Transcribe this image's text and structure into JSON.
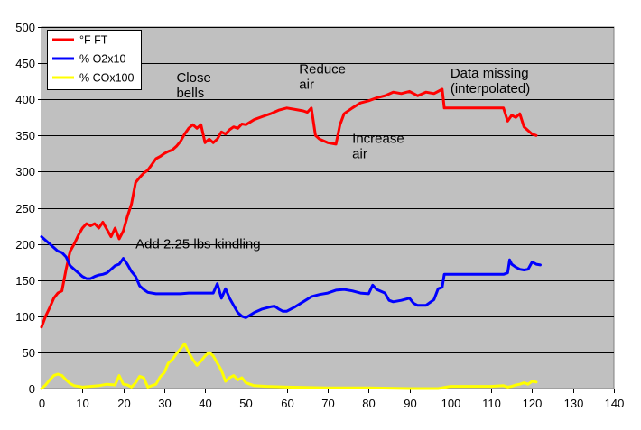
{
  "chart_data": {
    "type": "line",
    "title": "",
    "xlabel": "",
    "ylabel": "",
    "xlim": [
      0,
      140
    ],
    "ylim": [
      0,
      500
    ],
    "x_ticks": [
      0,
      10,
      20,
      30,
      40,
      50,
      60,
      70,
      80,
      90,
      100,
      110,
      120,
      130,
      140
    ],
    "y_ticks": [
      0,
      50,
      100,
      150,
      200,
      250,
      300,
      350,
      400,
      450,
      500
    ],
    "grid": "horizontal",
    "background": "#c0c0c0",
    "legend_position": "top-left",
    "series": [
      {
        "name": "°F FT",
        "color": "#ff0000",
        "points": [
          [
            0,
            85
          ],
          [
            1,
            100
          ],
          [
            2,
            112
          ],
          [
            3,
            125
          ],
          [
            4,
            132
          ],
          [
            5,
            135
          ],
          [
            6,
            165
          ],
          [
            7,
            190
          ],
          [
            8,
            200
          ],
          [
            9,
            212
          ],
          [
            10,
            222
          ],
          [
            11,
            228
          ],
          [
            12,
            225
          ],
          [
            13,
            228
          ],
          [
            14,
            222
          ],
          [
            15,
            230
          ],
          [
            16,
            220
          ],
          [
            17,
            210
          ],
          [
            18,
            222
          ],
          [
            19,
            207
          ],
          [
            20,
            218
          ],
          [
            21,
            238
          ],
          [
            22,
            255
          ],
          [
            23,
            285
          ],
          [
            24,
            292
          ],
          [
            25,
            298
          ],
          [
            26,
            302
          ],
          [
            27,
            310
          ],
          [
            28,
            318
          ],
          [
            29,
            321
          ],
          [
            30,
            325
          ],
          [
            31,
            328
          ],
          [
            32,
            330
          ],
          [
            33,
            335
          ],
          [
            34,
            342
          ],
          [
            35,
            352
          ],
          [
            36,
            360
          ],
          [
            37,
            365
          ],
          [
            38,
            360
          ],
          [
            39,
            365
          ],
          [
            40,
            340
          ],
          [
            41,
            345
          ],
          [
            42,
            340
          ],
          [
            43,
            345
          ],
          [
            44,
            355
          ],
          [
            45,
            352
          ],
          [
            46,
            358
          ],
          [
            47,
            362
          ],
          [
            48,
            360
          ],
          [
            49,
            366
          ],
          [
            50,
            365
          ],
          [
            52,
            372
          ],
          [
            54,
            376
          ],
          [
            56,
            380
          ],
          [
            58,
            385
          ],
          [
            60,
            388
          ],
          [
            62,
            386
          ],
          [
            64,
            384
          ],
          [
            65,
            382
          ],
          [
            66,
            388
          ],
          [
            67,
            350
          ],
          [
            68,
            345
          ],
          [
            70,
            340
          ],
          [
            72,
            338
          ],
          [
            73,
            365
          ],
          [
            74,
            380
          ],
          [
            76,
            388
          ],
          [
            78,
            395
          ],
          [
            80,
            398
          ],
          [
            82,
            402
          ],
          [
            84,
            405
          ],
          [
            86,
            410
          ],
          [
            88,
            408
          ],
          [
            90,
            411
          ],
          [
            92,
            405
          ],
          [
            94,
            410
          ],
          [
            96,
            408
          ],
          [
            98,
            414
          ],
          [
            98.5,
            388
          ],
          [
            113,
            388
          ],
          [
            114,
            370
          ],
          [
            115,
            378
          ],
          [
            116,
            375
          ],
          [
            117,
            380
          ],
          [
            118,
            362
          ],
          [
            120,
            352
          ],
          [
            121,
            350
          ]
        ]
      },
      {
        "name": "% O2x10",
        "color": "#0000ff",
        "points": [
          [
            0,
            210
          ],
          [
            1,
            205
          ],
          [
            2,
            200
          ],
          [
            3,
            195
          ],
          [
            4,
            190
          ],
          [
            5,
            188
          ],
          [
            6,
            182
          ],
          [
            7,
            170
          ],
          [
            8,
            165
          ],
          [
            9,
            160
          ],
          [
            10,
            155
          ],
          [
            11,
            152
          ],
          [
            12,
            152
          ],
          [
            13,
            155
          ],
          [
            14,
            157
          ],
          [
            15,
            158
          ],
          [
            16,
            160
          ],
          [
            17,
            165
          ],
          [
            18,
            170
          ],
          [
            19,
            172
          ],
          [
            20,
            180
          ],
          [
            21,
            172
          ],
          [
            22,
            162
          ],
          [
            23,
            155
          ],
          [
            24,
            142
          ],
          [
            25,
            137
          ],
          [
            26,
            133
          ],
          [
            28,
            131
          ],
          [
            30,
            131
          ],
          [
            32,
            131
          ],
          [
            34,
            131
          ],
          [
            36,
            132
          ],
          [
            38,
            132
          ],
          [
            40,
            132
          ],
          [
            42,
            132
          ],
          [
            43,
            145
          ],
          [
            44,
            125
          ],
          [
            45,
            138
          ],
          [
            46,
            125
          ],
          [
            47,
            115
          ],
          [
            48,
            105
          ],
          [
            49,
            100
          ],
          [
            50,
            98
          ],
          [
            52,
            105
          ],
          [
            54,
            110
          ],
          [
            56,
            113
          ],
          [
            57,
            114
          ],
          [
            58,
            110
          ],
          [
            59,
            107
          ],
          [
            60,
            107
          ],
          [
            62,
            113
          ],
          [
            64,
            120
          ],
          [
            66,
            127
          ],
          [
            68,
            130
          ],
          [
            70,
            132
          ],
          [
            72,
            136
          ],
          [
            74,
            137
          ],
          [
            76,
            135
          ],
          [
            78,
            132
          ],
          [
            80,
            131
          ],
          [
            81,
            143
          ],
          [
            82,
            137
          ],
          [
            84,
            132
          ],
          [
            85,
            122
          ],
          [
            86,
            120
          ],
          [
            88,
            122
          ],
          [
            90,
            125
          ],
          [
            91,
            118
          ],
          [
            92,
            115
          ],
          [
            94,
            115
          ],
          [
            96,
            123
          ],
          [
            97,
            138
          ],
          [
            98,
            140
          ],
          [
            98.5,
            158
          ],
          [
            100,
            158
          ],
          [
            105,
            158
          ],
          [
            110,
            158
          ],
          [
            113,
            158
          ],
          [
            114,
            160
          ],
          [
            114.5,
            178
          ],
          [
            115,
            172
          ],
          [
            116,
            168
          ],
          [
            117,
            165
          ],
          [
            118,
            164
          ],
          [
            119,
            165
          ],
          [
            120,
            175
          ],
          [
            121,
            172
          ],
          [
            122,
            171
          ]
        ]
      },
      {
        "name": "% COx100",
        "color": "#ffff00",
        "points": [
          [
            0,
            0
          ],
          [
            1,
            5
          ],
          [
            2,
            12
          ],
          [
            3,
            18
          ],
          [
            4,
            20
          ],
          [
            5,
            18
          ],
          [
            6,
            12
          ],
          [
            7,
            7
          ],
          [
            8,
            4
          ],
          [
            10,
            2
          ],
          [
            12,
            3
          ],
          [
            14,
            4
          ],
          [
            16,
            6
          ],
          [
            18,
            5
          ],
          [
            19,
            18
          ],
          [
            20,
            6
          ],
          [
            21,
            5
          ],
          [
            22,
            2
          ],
          [
            23,
            8
          ],
          [
            24,
            17
          ],
          [
            25,
            15
          ],
          [
            26,
            2
          ],
          [
            28,
            6
          ],
          [
            29,
            16
          ],
          [
            30,
            22
          ],
          [
            31,
            35
          ],
          [
            32,
            40
          ],
          [
            33,
            48
          ],
          [
            34,
            55
          ],
          [
            35,
            62
          ],
          [
            36,
            50
          ],
          [
            37,
            40
          ],
          [
            38,
            32
          ],
          [
            39,
            38
          ],
          [
            40,
            45
          ],
          [
            41,
            50
          ],
          [
            42,
            45
          ],
          [
            43,
            35
          ],
          [
            44,
            25
          ],
          [
            45,
            10
          ],
          [
            46,
            15
          ],
          [
            47,
            18
          ],
          [
            48,
            12
          ],
          [
            49,
            15
          ],
          [
            50,
            8
          ],
          [
            52,
            4
          ],
          [
            55,
            3
          ],
          [
            60,
            2
          ],
          [
            70,
            1
          ],
          [
            80,
            1
          ],
          [
            90,
            0
          ],
          [
            97,
            0
          ],
          [
            100,
            3
          ],
          [
            105,
            3
          ],
          [
            110,
            3
          ],
          [
            113,
            4
          ],
          [
            114,
            2
          ],
          [
            115,
            3
          ],
          [
            116,
            5
          ],
          [
            117,
            6
          ],
          [
            118,
            8
          ],
          [
            119,
            6
          ],
          [
            120,
            10
          ],
          [
            121,
            9
          ]
        ]
      }
    ],
    "annotations": [
      {
        "id": "close-bells",
        "lines": [
          "Close",
          "bells"
        ],
        "x": 33,
        "y": 424
      },
      {
        "id": "reduce-air",
        "lines": [
          "Reduce",
          "air"
        ],
        "x": 63,
        "y": 436
      },
      {
        "id": "data-missing",
        "lines": [
          "Data missing",
          "(interpolated)"
        ],
        "x": 100,
        "y": 430
      },
      {
        "id": "increase-air",
        "lines": [
          "Increase",
          "air"
        ],
        "x": 76,
        "y": 340
      },
      {
        "id": "add-kindling",
        "lines": [
          "Add 2.25 lbs kindling"
        ],
        "x": 23,
        "y": 194
      }
    ]
  }
}
